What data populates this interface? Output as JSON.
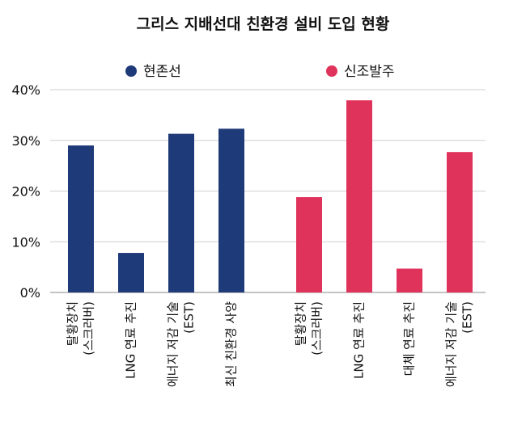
{
  "chart_data": {
    "type": "bar",
    "title": "그리스 지배선대 친환경 설비 도입 현황",
    "ylim": [
      0,
      40
    ],
    "yticks": [
      "0%",
      "10%",
      "20%",
      "30%",
      "40%"
    ],
    "grid": true,
    "legend_position": "top",
    "series": [
      {
        "name": "현존선",
        "color": "#1f3a78",
        "categories": [
          [
            "탈황장치",
            "(스크러버)"
          ],
          [
            "LNG 연료 추진"
          ],
          [
            "에너지 저감 기술",
            "(EST)"
          ],
          [
            "최신 친환경 사양"
          ]
        ],
        "values": [
          29,
          7.8,
          31.3,
          32.3
        ]
      },
      {
        "name": "신조발주",
        "color": "#e0335c",
        "categories": [
          [
            "탈황장치",
            "(스크러버)"
          ],
          [
            "LNG 연료 추진"
          ],
          [
            "대체 연료 추진"
          ],
          [
            "에너지 저감 기술",
            "(EST)"
          ]
        ],
        "values": [
          18.8,
          37.9,
          4.7,
          27.7
        ]
      }
    ]
  }
}
